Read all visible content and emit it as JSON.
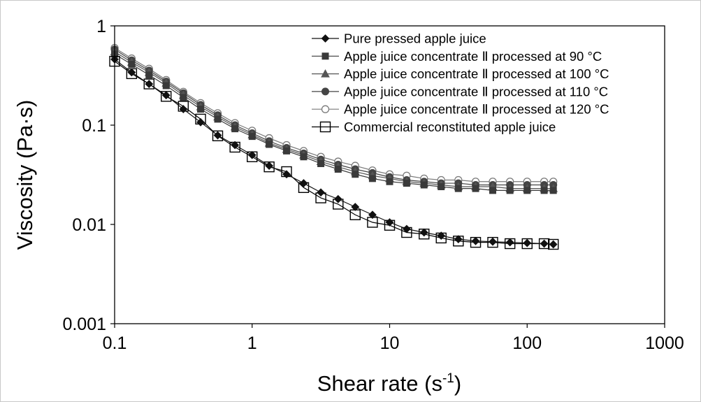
{
  "chart_data": {
    "type": "line",
    "xscale": "log",
    "yscale": "log",
    "xlim": [
      0.1,
      1000
    ],
    "ylim": [
      0.001,
      1
    ],
    "xlabel": "Shear rate (s",
    "xlabel_exp": "-1",
    "xlabel_end": ")",
    "ylabel": "Viscosity (Pa·s)",
    "xticks": [
      "0.1",
      "1",
      "10",
      "100",
      "1000"
    ],
    "yticks": [
      "0.001",
      "0.01",
      "0.1",
      "1"
    ],
    "legend_position": "top-right",
    "x": [
      0.1,
      0.133,
      0.178,
      0.237,
      0.316,
      0.422,
      0.562,
      0.75,
      1.0,
      1.33,
      1.78,
      2.37,
      3.16,
      4.22,
      5.62,
      7.5,
      10.0,
      13.3,
      17.8,
      23.7,
      31.6,
      42.2,
      56.2,
      75.0,
      100,
      133,
      155
    ],
    "series": [
      {
        "name": "Pure pressed apple juice",
        "marker": "diamond-filled",
        "values": [
          0.46,
          0.34,
          0.26,
          0.2,
          0.145,
          0.107,
          0.079,
          0.063,
          0.05,
          0.039,
          0.032,
          0.026,
          0.021,
          0.018,
          0.015,
          0.0125,
          0.0105,
          0.009,
          0.0083,
          0.0077,
          0.0071,
          0.0068,
          0.0067,
          0.0066,
          0.0065,
          0.0064,
          0.0063
        ]
      },
      {
        "name": "Apple juice concentrate Ⅱ processed at 90 °C",
        "marker": "square-filled",
        "values": [
          0.52,
          0.41,
          0.32,
          0.25,
          0.19,
          0.145,
          0.115,
          0.092,
          0.077,
          0.064,
          0.055,
          0.048,
          0.041,
          0.036,
          0.032,
          0.029,
          0.027,
          0.026,
          0.025,
          0.024,
          0.023,
          0.023,
          0.022,
          0.022,
          0.022,
          0.022,
          0.022
        ]
      },
      {
        "name": "Apple juice concentrate Ⅱ processed at 100 °C",
        "marker": "triangle-filled",
        "values": [
          0.55,
          0.43,
          0.34,
          0.265,
          0.2,
          0.153,
          0.121,
          0.096,
          0.08,
          0.066,
          0.057,
          0.05,
          0.043,
          0.038,
          0.034,
          0.031,
          0.029,
          0.027,
          0.026,
          0.025,
          0.024,
          0.024,
          0.024,
          0.023,
          0.023,
          0.023,
          0.023
        ]
      },
      {
        "name": "Apple juice concentrate Ⅱ processed at 110 °C",
        "marker": "circle-filled",
        "values": [
          0.58,
          0.45,
          0.355,
          0.275,
          0.21,
          0.16,
          0.126,
          0.1,
          0.083,
          0.069,
          0.059,
          0.052,
          0.045,
          0.04,
          0.036,
          0.033,
          0.03,
          0.028,
          0.027,
          0.026,
          0.026,
          0.025,
          0.025,
          0.025,
          0.025,
          0.025,
          0.025
        ]
      },
      {
        "name": "Apple juice concentrate Ⅱ processed at 120 °C",
        "marker": "circle-open",
        "values": [
          0.6,
          0.47,
          0.37,
          0.285,
          0.217,
          0.167,
          0.132,
          0.105,
          0.088,
          0.074,
          0.063,
          0.055,
          0.048,
          0.043,
          0.039,
          0.035,
          0.032,
          0.031,
          0.029,
          0.028,
          0.028,
          0.027,
          0.027,
          0.027,
          0.027,
          0.027,
          0.027
        ]
      },
      {
        "name": "Commercial reconstituted apple juice",
        "marker": "square-open",
        "values": [
          0.44,
          0.33,
          0.26,
          0.195,
          0.155,
          0.115,
          0.078,
          0.06,
          0.048,
          0.038,
          0.034,
          0.0235,
          0.0185,
          0.016,
          0.0125,
          0.0105,
          0.0098,
          0.0083,
          0.008,
          0.0073,
          0.0068,
          0.0066,
          0.0066,
          0.0064,
          0.0064,
          0.0064,
          0.0063
        ]
      }
    ]
  }
}
